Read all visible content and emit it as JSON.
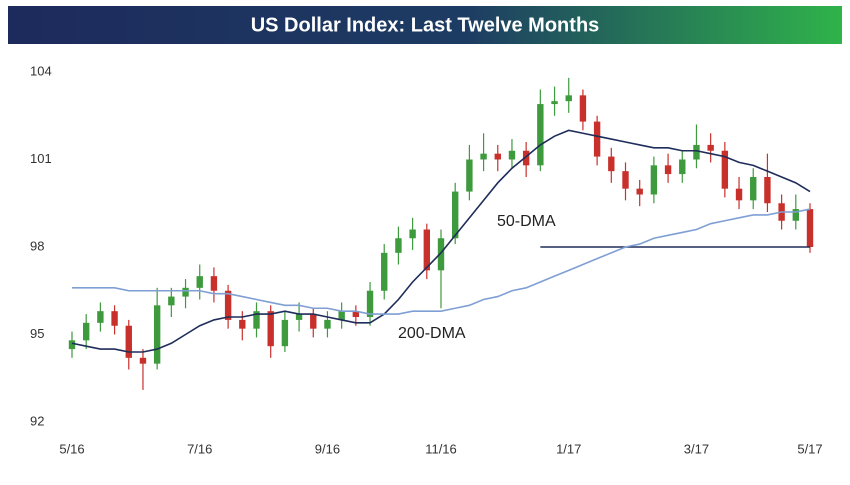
{
  "chart_data": {
    "type": "candlestick",
    "title": "US Dollar Index: Last Twelve Months",
    "categories": [
      "5/16",
      null,
      null,
      null,
      null,
      null,
      null,
      null,
      null,
      "7/16",
      null,
      null,
      null,
      null,
      null,
      null,
      null,
      null,
      "9/16",
      null,
      null,
      null,
      null,
      null,
      null,
      null,
      "11/16",
      null,
      null,
      null,
      null,
      null,
      null,
      null,
      null,
      "1/17",
      null,
      null,
      null,
      null,
      null,
      null,
      null,
      null,
      "3/17",
      null,
      null,
      null,
      null,
      null,
      null,
      null,
      "5/17"
    ],
    "open": [
      94.5,
      94.8,
      95.4,
      95.8,
      95.3,
      94.2,
      94.0,
      96.0,
      96.3,
      96.6,
      97.0,
      96.5,
      95.5,
      95.2,
      95.8,
      94.6,
      95.5,
      95.7,
      95.2,
      95.5,
      95.8,
      95.6,
      96.5,
      97.8,
      98.3,
      98.6,
      97.2,
      98.3,
      99.9,
      101.0,
      101.2,
      101.0,
      101.3,
      100.8,
      102.9,
      103.0,
      103.2,
      102.3,
      101.1,
      100.6,
      100.0,
      99.8,
      100.8,
      100.5,
      101.0,
      101.5,
      101.3,
      100.0,
      99.6,
      100.4,
      99.5,
      98.9,
      99.3
    ],
    "high": [
      95.1,
      95.7,
      96.1,
      96.0,
      95.5,
      94.5,
      96.6,
      96.6,
      96.9,
      97.4,
      97.3,
      96.7,
      95.8,
      96.1,
      96.0,
      95.8,
      96.1,
      95.9,
      95.8,
      96.1,
      96.0,
      96.8,
      98.1,
      98.7,
      99.0,
      98.8,
      98.6,
      100.2,
      101.5,
      101.9,
      101.5,
      101.7,
      101.6,
      103.4,
      103.5,
      103.8,
      103.4,
      102.5,
      101.4,
      100.9,
      100.3,
      101.1,
      101.2,
      101.3,
      102.2,
      101.9,
      101.6,
      100.4,
      100.7,
      101.2,
      99.8,
      99.8,
      99.5
    ],
    "low": [
      94.2,
      94.5,
      95.1,
      95.0,
      93.8,
      93.1,
      93.8,
      95.6,
      95.9,
      96.2,
      96.1,
      95.2,
      94.8,
      94.9,
      94.2,
      94.4,
      95.1,
      94.9,
      94.9,
      95.2,
      95.3,
      95.3,
      96.2,
      97.4,
      97.9,
      96.9,
      95.9,
      98.1,
      99.6,
      100.6,
      100.6,
      100.7,
      100.4,
      100.6,
      102.5,
      102.6,
      102.0,
      100.8,
      100.2,
      99.6,
      99.4,
      99.5,
      100.2,
      100.2,
      100.7,
      100.9,
      99.7,
      99.3,
      99.3,
      99.2,
      98.6,
      98.6,
      97.8
    ],
    "close": [
      94.8,
      95.4,
      95.8,
      95.3,
      94.2,
      94.0,
      96.0,
      96.3,
      96.6,
      97.0,
      96.5,
      95.5,
      95.2,
      95.8,
      94.6,
      95.5,
      95.7,
      95.2,
      95.5,
      95.8,
      95.6,
      96.5,
      97.8,
      98.3,
      98.6,
      97.2,
      98.3,
      99.9,
      101.0,
      101.2,
      101.0,
      101.3,
      100.8,
      102.9,
      103.0,
      103.2,
      102.3,
      101.1,
      100.6,
      100.0,
      99.8,
      100.8,
      100.5,
      101.0,
      101.5,
      101.3,
      100.0,
      99.6,
      100.4,
      99.5,
      98.9,
      99.3,
      98.0
    ],
    "up_color": "#3d9a3d",
    "down_color": "#c8302c",
    "series": [
      {
        "name": "50-DMA",
        "color": "#1f2d5a",
        "values": [
          94.7,
          94.6,
          94.5,
          94.5,
          94.4,
          94.4,
          94.5,
          94.7,
          95.0,
          95.3,
          95.5,
          95.6,
          95.6,
          95.7,
          95.7,
          95.8,
          95.7,
          95.7,
          95.6,
          95.5,
          95.4,
          95.4,
          95.7,
          96.2,
          96.8,
          97.3,
          97.8,
          98.4,
          99.0,
          99.6,
          100.2,
          100.7,
          101.1,
          101.5,
          101.8,
          102.0,
          101.9,
          101.8,
          101.7,
          101.6,
          101.5,
          101.4,
          101.4,
          101.3,
          101.3,
          101.2,
          101.1,
          100.9,
          100.8,
          100.6,
          100.4,
          100.2,
          99.9
        ]
      },
      {
        "name": "200-DMA",
        "color": "#7f9fd4",
        "values": [
          96.6,
          96.6,
          96.6,
          96.6,
          96.5,
          96.5,
          96.5,
          96.5,
          96.5,
          96.5,
          96.4,
          96.4,
          96.3,
          96.2,
          96.1,
          96.0,
          96.0,
          95.9,
          95.9,
          95.8,
          95.8,
          95.7,
          95.7,
          95.7,
          95.8,
          95.8,
          95.8,
          95.9,
          96.0,
          96.2,
          96.3,
          96.5,
          96.6,
          96.8,
          97.0,
          97.2,
          97.4,
          97.6,
          97.8,
          98.0,
          98.1,
          98.3,
          98.4,
          98.5,
          98.6,
          98.8,
          98.9,
          99.0,
          99.1,
          99.1,
          99.2,
          99.2,
          99.3
        ]
      }
    ],
    "hline": 98,
    "hline_color": "#1f2d5a",
    "ylim": [
      92,
      104
    ],
    "yticks": [
      92,
      95,
      98,
      101,
      104
    ]
  }
}
